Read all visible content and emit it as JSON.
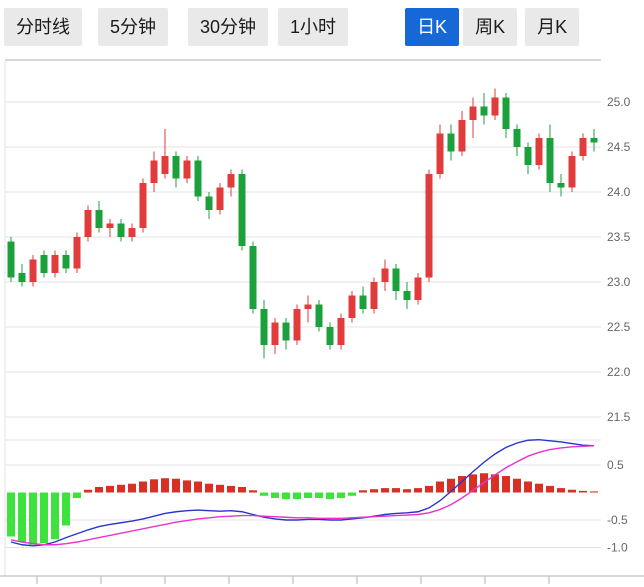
{
  "toolbar": {
    "tabs": [
      {
        "label": "分时线",
        "name": "tab-time-line",
        "active": false
      },
      {
        "label": "5分钟",
        "name": "tab-5min",
        "active": false
      },
      {
        "label": "30分钟",
        "name": "tab-30min",
        "active": false
      },
      {
        "label": "1小时",
        "name": "tab-1hour",
        "active": false
      },
      {
        "label": "日K",
        "name": "tab-daily-k",
        "active": true
      },
      {
        "label": "周K",
        "name": "tab-weekly-k",
        "active": false
      },
      {
        "label": "月K",
        "name": "tab-monthly-k",
        "active": false
      }
    ]
  },
  "colors": {
    "up": "#e23b3b",
    "down": "#1ca03c",
    "macd_red": "#d93025",
    "macd_green": "#3de23d",
    "dif": "#2736c8",
    "dea": "#e833cc",
    "grid": "#e3e3e3",
    "axis": "#b0b0b0",
    "axis_text": "#666666",
    "tab_active_bg": "#1668d6",
    "tab_bg": "#e9e9e9"
  },
  "chart_data": {
    "type": "candlestick",
    "title": "",
    "xlabel": "",
    "ylabel": "",
    "timeframe_selected": "日K",
    "price_axis": {
      "ticks": [
        25.0,
        24.5,
        24.0,
        23.5,
        23.0,
        22.5,
        22.0,
        21.5
      ],
      "labels": [
        "25.0",
        "24.5",
        "24.0",
        "23.5",
        "23.0",
        "22.5",
        "22.0",
        "21.5"
      ],
      "range": [
        21.4,
        25.5
      ]
    },
    "macd_axis": {
      "ticks": [
        0.5,
        -0.5,
        -1.0
      ],
      "labels": [
        "0.5",
        "-0.5",
        "-1.0"
      ],
      "range": [
        -1.4,
        1.0
      ]
    },
    "candles_ohlc": [
      [
        23.45,
        23.5,
        23.0,
        23.05
      ],
      [
        23.1,
        23.2,
        22.95,
        23.0
      ],
      [
        23.0,
        23.3,
        22.95,
        23.25
      ],
      [
        23.3,
        23.35,
        23.05,
        23.1
      ],
      [
        23.1,
        23.35,
        23.05,
        23.3
      ],
      [
        23.3,
        23.35,
        23.1,
        23.15
      ],
      [
        23.15,
        23.55,
        23.1,
        23.5
      ],
      [
        23.5,
        23.85,
        23.45,
        23.8
      ],
      [
        23.8,
        23.9,
        23.55,
        23.6
      ],
      [
        23.6,
        23.7,
        23.5,
        23.65
      ],
      [
        23.65,
        23.7,
        23.45,
        23.5
      ],
      [
        23.5,
        23.65,
        23.45,
        23.6
      ],
      [
        23.6,
        24.15,
        23.55,
        24.1
      ],
      [
        24.1,
        24.45,
        24.0,
        24.35
      ],
      [
        24.2,
        24.7,
        24.15,
        24.4
      ],
      [
        24.4,
        24.45,
        24.05,
        24.15
      ],
      [
        24.15,
        24.4,
        24.1,
        24.35
      ],
      [
        24.35,
        24.4,
        23.9,
        23.95
      ],
      [
        23.95,
        24.0,
        23.7,
        23.8
      ],
      [
        23.8,
        24.1,
        23.75,
        24.05
      ],
      [
        24.05,
        24.25,
        23.95,
        24.2
      ],
      [
        24.2,
        24.25,
        23.35,
        23.4
      ],
      [
        23.4,
        23.45,
        22.65,
        22.7
      ],
      [
        22.7,
        22.8,
        22.15,
        22.3
      ],
      [
        22.3,
        22.6,
        22.2,
        22.55
      ],
      [
        22.55,
        22.6,
        22.25,
        22.35
      ],
      [
        22.35,
        22.75,
        22.3,
        22.7
      ],
      [
        22.7,
        22.85,
        22.55,
        22.75
      ],
      [
        22.75,
        22.8,
        22.45,
        22.5
      ],
      [
        22.5,
        22.55,
        22.25,
        22.3
      ],
      [
        22.3,
        22.65,
        22.25,
        22.6
      ],
      [
        22.6,
        22.9,
        22.55,
        22.85
      ],
      [
        22.85,
        22.95,
        22.65,
        22.7
      ],
      [
        22.7,
        23.05,
        22.65,
        23.0
      ],
      [
        23.0,
        23.25,
        22.9,
        23.15
      ],
      [
        23.15,
        23.2,
        22.8,
        22.9
      ],
      [
        22.9,
        23.0,
        22.7,
        22.8
      ],
      [
        22.8,
        23.1,
        22.75,
        23.05
      ],
      [
        23.05,
        24.25,
        23.0,
        24.2
      ],
      [
        24.2,
        24.75,
        24.15,
        24.65
      ],
      [
        24.65,
        24.75,
        24.35,
        24.45
      ],
      [
        24.45,
        24.9,
        24.4,
        24.8
      ],
      [
        24.8,
        25.05,
        24.6,
        24.95
      ],
      [
        24.95,
        25.1,
        24.75,
        24.85
      ],
      [
        24.85,
        25.15,
        24.8,
        25.05
      ],
      [
        25.05,
        25.1,
        24.6,
        24.7
      ],
      [
        24.7,
        24.75,
        24.4,
        24.5
      ],
      [
        24.5,
        24.55,
        24.2,
        24.3
      ],
      [
        24.3,
        24.65,
        24.25,
        24.6
      ],
      [
        24.6,
        24.75,
        24.0,
        24.1
      ],
      [
        24.1,
        24.2,
        23.95,
        24.05
      ],
      [
        24.05,
        24.45,
        24.0,
        24.4
      ],
      [
        24.4,
        24.65,
        24.35,
        24.6
      ],
      [
        24.6,
        24.7,
        24.45,
        24.55
      ]
    ],
    "macd": {
      "histogram": [
        -0.8,
        -0.9,
        -0.95,
        -0.92,
        -0.85,
        -0.6,
        -0.1,
        0.05,
        0.1,
        0.12,
        0.14,
        0.16,
        0.2,
        0.24,
        0.26,
        0.25,
        0.22,
        0.2,
        0.16,
        0.14,
        0.12,
        0.1,
        0.04,
        -0.06,
        -0.1,
        -0.12,
        -0.12,
        -0.1,
        -0.1,
        -0.12,
        -0.1,
        -0.06,
        0.04,
        0.06,
        0.08,
        0.08,
        0.06,
        0.08,
        0.12,
        0.2,
        0.25,
        0.3,
        0.33,
        0.35,
        0.33,
        0.3,
        0.25,
        0.2,
        0.16,
        0.12,
        0.08,
        0.05,
        0.03,
        0.02
      ],
      "dif": [
        -0.9,
        -0.95,
        -0.97,
        -0.95,
        -0.9,
        -0.82,
        -0.75,
        -0.68,
        -0.62,
        -0.58,
        -0.55,
        -0.52,
        -0.48,
        -0.43,
        -0.38,
        -0.35,
        -0.33,
        -0.32,
        -0.33,
        -0.34,
        -0.33,
        -0.35,
        -0.4,
        -0.45,
        -0.48,
        -0.5,
        -0.5,
        -0.49,
        -0.49,
        -0.5,
        -0.5,
        -0.48,
        -0.46,
        -0.43,
        -0.4,
        -0.38,
        -0.37,
        -0.35,
        -0.28,
        -0.15,
        0.02,
        0.2,
        0.38,
        0.55,
        0.7,
        0.82,
        0.9,
        0.95,
        0.96,
        0.94,
        0.92,
        0.89,
        0.86,
        0.85
      ],
      "dea": [
        -0.86,
        -0.9,
        -0.93,
        -0.95,
        -0.95,
        -0.93,
        -0.9,
        -0.86,
        -0.82,
        -0.78,
        -0.74,
        -0.7,
        -0.66,
        -0.62,
        -0.58,
        -0.54,
        -0.51,
        -0.48,
        -0.46,
        -0.44,
        -0.43,
        -0.42,
        -0.42,
        -0.43,
        -0.44,
        -0.45,
        -0.46,
        -0.46,
        -0.47,
        -0.47,
        -0.47,
        -0.46,
        -0.45,
        -0.44,
        -0.43,
        -0.42,
        -0.41,
        -0.4,
        -0.37,
        -0.31,
        -0.22,
        -0.1,
        0.04,
        0.18,
        0.32,
        0.45,
        0.56,
        0.66,
        0.73,
        0.78,
        0.81,
        0.83,
        0.84,
        0.85
      ]
    }
  }
}
